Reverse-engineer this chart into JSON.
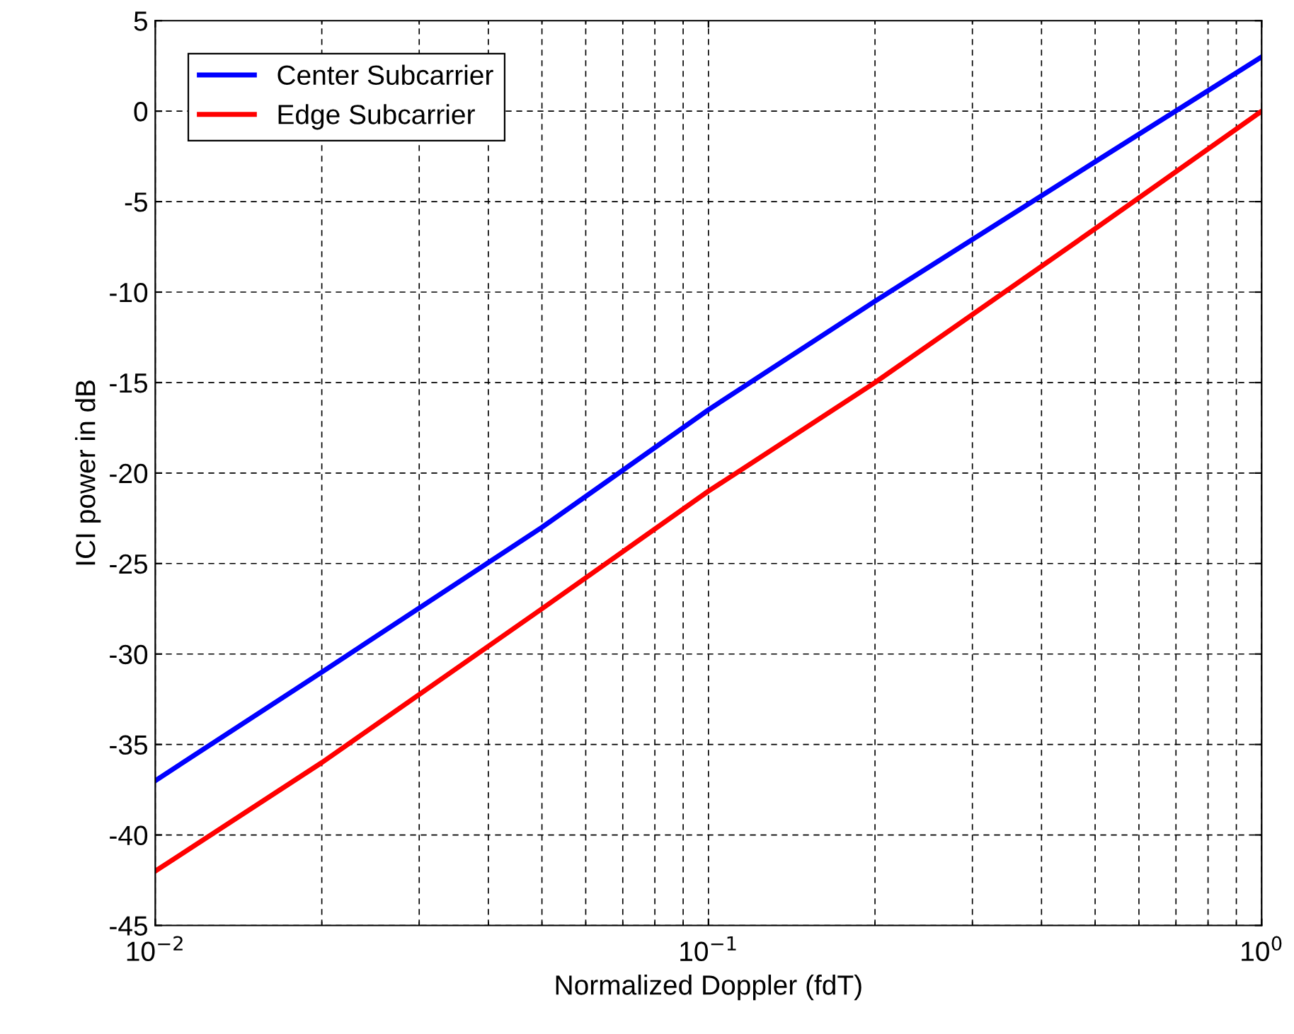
{
  "chart_data": {
    "type": "line",
    "xlabel": "Normalized Doppler (fdT)",
    "ylabel": "ICI power in dB",
    "log": "x",
    "x": [
      0.01,
      0.02,
      0.05,
      0.1,
      0.2,
      0.5,
      1
    ],
    "series": [
      {
        "name": "Center Subcarrier",
        "color": "#0000ff",
        "values": [
          -37,
          -31,
          -23,
          -16.5,
          -10.5,
          -2.8,
          3
        ]
      },
      {
        "name": "Edge Subcarrier",
        "color": "#ff0000",
        "values": [
          -42,
          -36,
          -27.5,
          -21,
          -15,
          -6.5,
          0
        ]
      }
    ],
    "xlim": [
      0.01,
      1
    ],
    "xticks": [
      {
        "value": 0.01,
        "label": "10$^{−2}$"
      },
      {
        "value": 0.1,
        "label": "10$^{−1}$"
      },
      {
        "value": 1,
        "label": "10$^{0}$"
      }
    ],
    "ylim": [
      -45,
      5
    ],
    "yticks": [
      -45,
      -40,
      -35,
      -30,
      -25,
      -20,
      -15,
      -10,
      -5,
      0,
      5
    ],
    "grid": true,
    "legend": "top left",
    "line_style": "solid",
    "marker": "none"
  }
}
